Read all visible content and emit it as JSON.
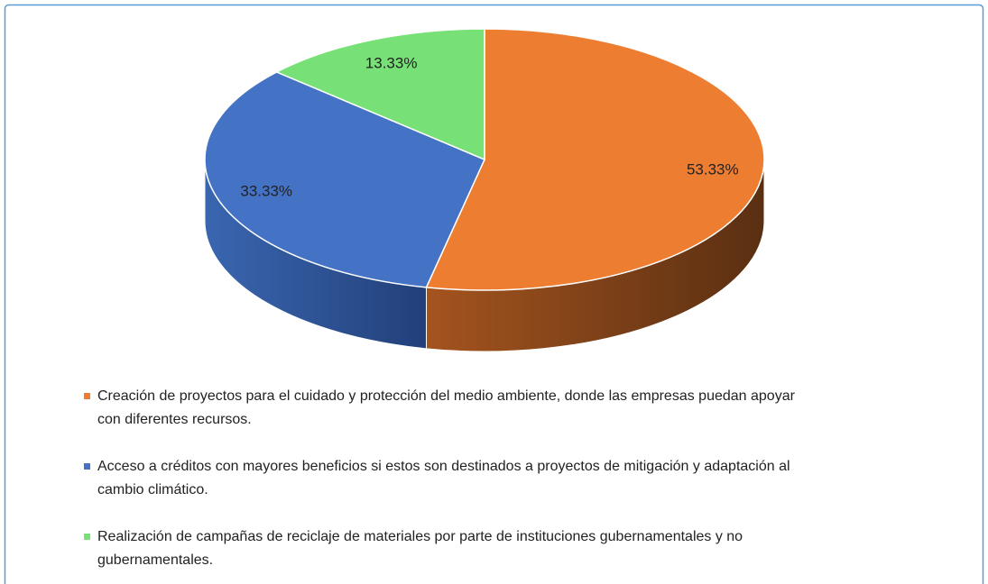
{
  "chart_data": {
    "type": "pie",
    "categories": [
      "Creación de proyectos para el cuidado y protección del medio ambiente, donde las empresas puedan apoyar con diferentes recursos.",
      "Acceso a créditos con mayores beneficios si estos son destinados a proyectos de mitigación y adaptación al cambio climático.",
      "Realización de campañas de reciclaje de materiales por parte de instituciones gubernamentales y no gubernamentales."
    ],
    "values": [
      53.33,
      33.33,
      13.33
    ],
    "value_labels": [
      "53.33%",
      "33.33%",
      "13.33%"
    ],
    "colors": [
      "#ed7d31",
      "#4472c4",
      "#77e077"
    ],
    "legend": "bottom"
  }
}
